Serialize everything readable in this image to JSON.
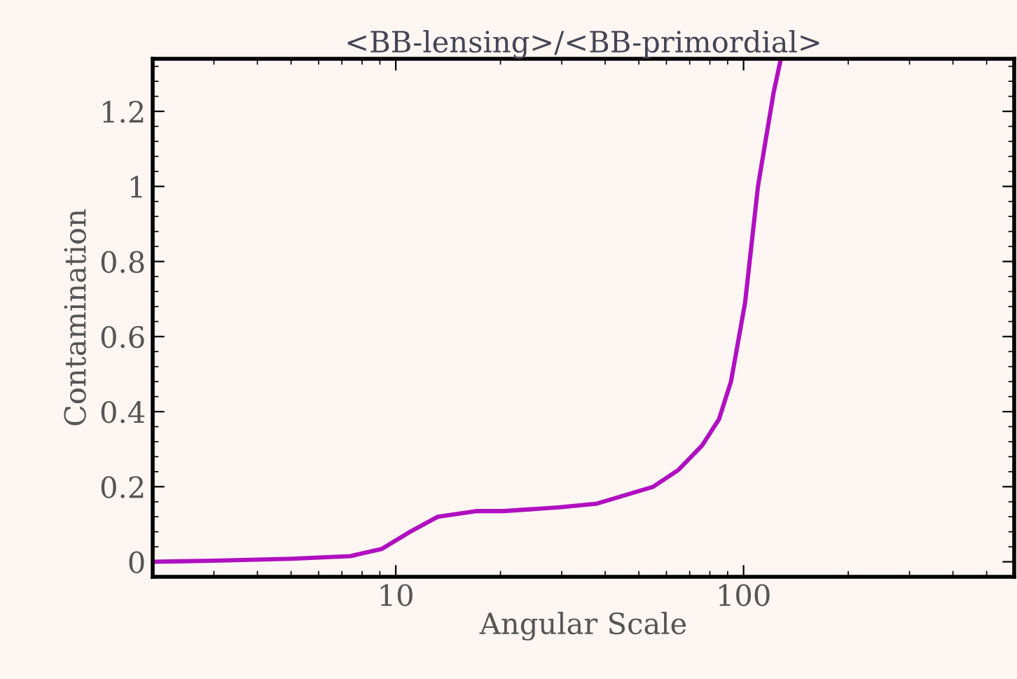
{
  "chart_data": {
    "type": "line",
    "title": "<BB-lensing>/<BB-primordial>",
    "xlabel": "Angular Scale",
    "ylabel": "Contamination",
    "log": "x",
    "xlim": [
      2,
      600
    ],
    "xticks": [
      10,
      100
    ],
    "ylim": [
      -0.04,
      1.34
    ],
    "yticks": [
      0,
      0.2,
      0.4,
      0.6,
      0.8,
      1,
      1.2
    ],
    "grid": false,
    "legend": false,
    "series": [
      {
        "color": "#b010c0",
        "x": [
          2,
          3,
          5,
          7.4,
          9.1,
          11,
          13.2,
          17,
          20.4,
          29.5,
          37.9,
          55,
          65,
          76,
          85,
          92,
          101,
          110,
          122,
          128
        ],
        "values": [
          0,
          0.003,
          0.008,
          0.015,
          0.034,
          0.08,
          0.12,
          0.135,
          0.135,
          0.145,
          0.155,
          0.2,
          0.245,
          0.31,
          0.38,
          0.48,
          0.69,
          1.0,
          1.25,
          1.34
        ]
      }
    ]
  }
}
